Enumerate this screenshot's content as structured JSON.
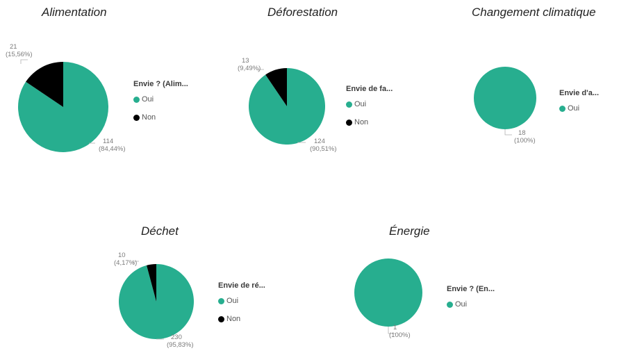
{
  "colors": {
    "oui": "#27ae8f",
    "non": "#000000"
  },
  "chart_data": [
    {
      "type": "pie",
      "title": "Alimentation",
      "legend_title": "Envie ? (Alim...",
      "legend_placement": "right",
      "categories": [
        "Oui",
        "Non"
      ],
      "values": [
        114,
        21
      ],
      "labels": [
        [
          "114",
          "(84,44%)"
        ],
        [
          "21",
          "(15,56%)"
        ]
      ]
    },
    {
      "type": "pie",
      "title": "Déforestation",
      "legend_title": "Envie de fa...",
      "legend_placement": "right",
      "categories": [
        "Oui",
        "Non"
      ],
      "values": [
        124,
        13
      ],
      "labels": [
        [
          "124",
          "(90,51%)"
        ],
        [
          "13",
          "(9,49%)"
        ]
      ]
    },
    {
      "type": "pie",
      "title": "Changement climatique",
      "legend_title": "Envie d'a...",
      "legend_placement": "right",
      "categories": [
        "Oui"
      ],
      "values": [
        18
      ],
      "labels": [
        [
          "18",
          "(100%)"
        ]
      ]
    },
    {
      "type": "pie",
      "title": "Déchet",
      "legend_title": "Envie de ré...",
      "legend_placement": "right",
      "categories": [
        "Oui",
        "Non"
      ],
      "values": [
        230,
        10
      ],
      "labels": [
        [
          "230",
          "(95,83%)"
        ],
        [
          "10",
          "(4,17%)"
        ]
      ]
    },
    {
      "type": "pie",
      "title": "Énergie",
      "legend_title": "Envie ? (En...",
      "legend_placement": "right",
      "categories": [
        "Oui"
      ],
      "values": [
        1
      ],
      "labels": [
        [
          "1",
          "(100%)"
        ]
      ]
    }
  ]
}
